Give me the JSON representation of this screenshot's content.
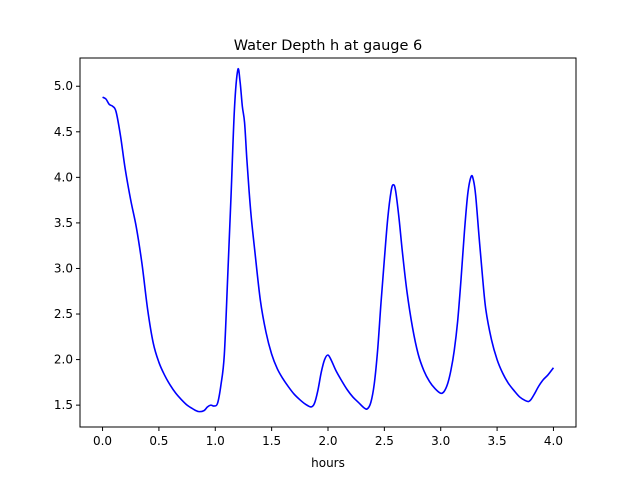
{
  "chart_data": {
    "type": "line",
    "title": "Water Depth h at gauge 6",
    "xlabel": "hours",
    "ylabel": "",
    "xlim": [
      -0.2,
      4.2
    ],
    "ylim": [
      1.26,
      5.31
    ],
    "xticks": [
      0.0,
      0.5,
      1.0,
      1.5,
      2.0,
      2.5,
      3.0,
      3.5,
      4.0
    ],
    "xtick_labels": [
      "0.0",
      "0.5",
      "1.0",
      "1.5",
      "2.0",
      "2.5",
      "3.0",
      "3.5",
      "4.0"
    ],
    "yticks": [
      1.5,
      2.0,
      2.5,
      3.0,
      3.5,
      4.0,
      4.5,
      5.0
    ],
    "ytick_labels": [
      "1.5",
      "2.0",
      "2.5",
      "3.0",
      "3.5",
      "4.0",
      "4.5",
      "5.0"
    ],
    "grid": false,
    "series": [
      {
        "color": "#0000ff",
        "x": [
          0.0,
          0.03,
          0.06,
          0.09,
          0.12,
          0.16,
          0.2,
          0.25,
          0.3,
          0.35,
          0.4,
          0.45,
          0.5,
          0.55,
          0.6,
          0.65,
          0.7,
          0.75,
          0.8,
          0.85,
          0.9,
          0.93,
          0.96,
          0.99,
          1.02,
          1.05,
          1.08,
          1.11,
          1.14,
          1.17,
          1.2,
          1.22,
          1.24,
          1.26,
          1.28,
          1.3,
          1.32,
          1.35,
          1.4,
          1.45,
          1.5,
          1.55,
          1.6,
          1.65,
          1.7,
          1.75,
          1.8,
          1.85,
          1.88,
          1.91,
          1.94,
          1.97,
          2.0,
          2.03,
          2.07,
          2.12,
          2.17,
          2.22,
          2.27,
          2.32,
          2.35,
          2.38,
          2.41,
          2.44,
          2.47,
          2.5,
          2.53,
          2.56,
          2.58,
          2.6,
          2.63,
          2.66,
          2.7,
          2.75,
          2.8,
          2.85,
          2.9,
          2.95,
          3.0,
          3.03,
          3.06,
          3.09,
          3.12,
          3.15,
          3.18,
          3.21,
          3.24,
          3.27,
          3.29,
          3.31,
          3.34,
          3.37,
          3.4,
          3.45,
          3.5,
          3.55,
          3.6,
          3.65,
          3.7,
          3.75,
          3.78,
          3.8,
          3.83,
          3.87,
          3.91,
          3.95,
          4.0
        ],
        "y": [
          4.88,
          4.86,
          4.8,
          4.78,
          4.72,
          4.45,
          4.1,
          3.75,
          3.45,
          3.05,
          2.55,
          2.18,
          1.97,
          1.83,
          1.72,
          1.63,
          1.56,
          1.5,
          1.46,
          1.43,
          1.44,
          1.48,
          1.5,
          1.49,
          1.52,
          1.72,
          2.05,
          2.9,
          3.8,
          4.75,
          5.18,
          5.05,
          4.78,
          4.6,
          4.2,
          3.85,
          3.55,
          3.2,
          2.65,
          2.3,
          2.06,
          1.9,
          1.79,
          1.7,
          1.62,
          1.56,
          1.51,
          1.48,
          1.52,
          1.66,
          1.86,
          2.0,
          2.05,
          1.99,
          1.88,
          1.77,
          1.67,
          1.59,
          1.53,
          1.47,
          1.46,
          1.53,
          1.73,
          2.1,
          2.62,
          3.1,
          3.55,
          3.85,
          3.92,
          3.85,
          3.55,
          3.18,
          2.75,
          2.35,
          2.06,
          1.88,
          1.76,
          1.68,
          1.63,
          1.65,
          1.73,
          1.88,
          2.1,
          2.42,
          2.88,
          3.4,
          3.82,
          4.01,
          3.97,
          3.8,
          3.35,
          2.92,
          2.55,
          2.22,
          2.0,
          1.85,
          1.74,
          1.66,
          1.59,
          1.55,
          1.54,
          1.56,
          1.62,
          1.71,
          1.78,
          1.83,
          1.91
        ]
      }
    ]
  }
}
